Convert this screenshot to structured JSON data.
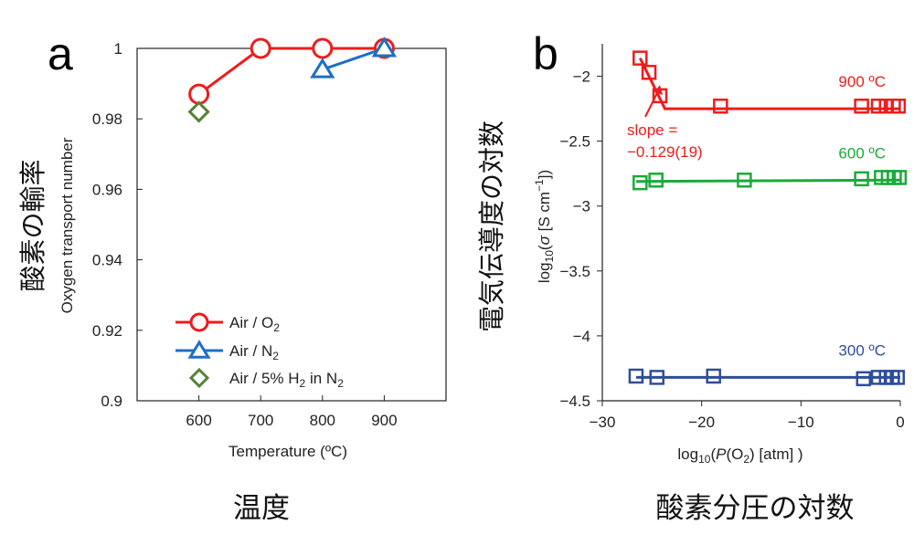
{
  "chart_data": [
    {
      "type": "line",
      "panel_label": "a",
      "xlabel": "Temperature (ºC)",
      "ylabel": "Oxygen transport number",
      "ylabel_jp": "酸素の輸率",
      "bottom_caption_jp": "温度",
      "xlim": [
        500,
        1000
      ],
      "ylim": [
        0.9,
        1.0
      ],
      "xticks": [
        "600",
        "700",
        "800",
        "900"
      ],
      "yticks": [
        "0.9",
        "0.92",
        "0.94",
        "0.96",
        "0.98",
        "1"
      ],
      "grid": false,
      "legend_placement": "bottom-left",
      "series": [
        {
          "name_prefix": "Air /",
          "name_body": "O",
          "name_sub": "2",
          "name_tail": "",
          "color": "#ee1c1c",
          "marker": "circle",
          "x": [
            600,
            700,
            800,
            900
          ],
          "y": [
            0.987,
            1.0,
            1.0,
            1.0
          ]
        },
        {
          "name_prefix": "Air /",
          "name_body": "N",
          "name_sub": "2",
          "name_tail": "",
          "color": "#1f6fc0",
          "marker": "triangle",
          "x": [
            800,
            900
          ],
          "y": [
            0.994,
            1.0
          ]
        },
        {
          "name_prefix": "Air /",
          "name_body": "5% H",
          "name_sub": "2",
          "name_tail": " in N",
          "name_sub2": "2",
          "color": "#548235",
          "marker": "diamond",
          "x": [
            600
          ],
          "y": [
            0.982
          ]
        }
      ]
    },
    {
      "type": "scatter",
      "panel_label": "b",
      "xlabel_parts": [
        "log",
        "10",
        "(",
        "P",
        "(O",
        "2",
        ") [atm] )"
      ],
      "ylabel_parts": [
        "log",
        "10",
        "(",
        "σ",
        " [S cm",
        "−1",
        "])"
      ],
      "ylabel_jp": "電気伝導度の対数",
      "bottom_caption_jp": "酸素分圧の対数",
      "xlim": [
        -30,
        0
      ],
      "ylim": [
        -4.5,
        -1.75
      ],
      "xticks": [
        "−30",
        "−20",
        "−10",
        "0"
      ],
      "yticks": [
        "−2",
        "−2.5",
        "−3",
        "−3.5",
        "−4",
        "−4.5"
      ],
      "grid": false,
      "annotation": {
        "line1": "slope =",
        "line2": "−0.129(19)",
        "color": "#ee1c1c"
      },
      "series": [
        {
          "name": "900 ºC",
          "color": "#ee1c1c",
          "marker": "square",
          "x": [
            -26.2,
            -25.3,
            -24.2,
            -18.1,
            -3.9,
            -2.2,
            -1.4,
            -0.7,
            -0.2
          ],
          "y": [
            -1.86,
            -1.97,
            -2.15,
            -2.23,
            -2.23,
            -2.23,
            -2.23,
            -2.23,
            -2.23
          ],
          "fit": [
            [
              -26.2,
              -1.86
            ],
            [
              -23.7,
              -2.25
            ],
            [
              0,
              -2.25
            ]
          ]
        },
        {
          "name": "600 ºC",
          "color": "#1aaa3a",
          "marker": "square",
          "x": [
            -26.2,
            -24.6,
            -15.7,
            -3.9,
            -1.9,
            -1.2,
            -0.6,
            -0.1
          ],
          "y": [
            -2.82,
            -2.8,
            -2.8,
            -2.79,
            -2.78,
            -2.78,
            -2.78,
            -2.78
          ],
          "fit": [
            [
              -26.6,
              -2.81
            ],
            [
              0,
              -2.8
            ]
          ]
        },
        {
          "name": "300 ºC",
          "color": "#2e4d9b",
          "marker": "square",
          "x": [
            -26.6,
            -24.5,
            -18.8,
            -3.7,
            -2.2,
            -1.4,
            -0.8,
            -0.3
          ],
          "y": [
            -4.31,
            -4.32,
            -4.31,
            -4.33,
            -4.32,
            -4.32,
            -4.32,
            -4.32
          ],
          "fit": [
            [
              -26.6,
              -4.32
            ],
            [
              0,
              -4.32
            ]
          ]
        }
      ]
    }
  ]
}
